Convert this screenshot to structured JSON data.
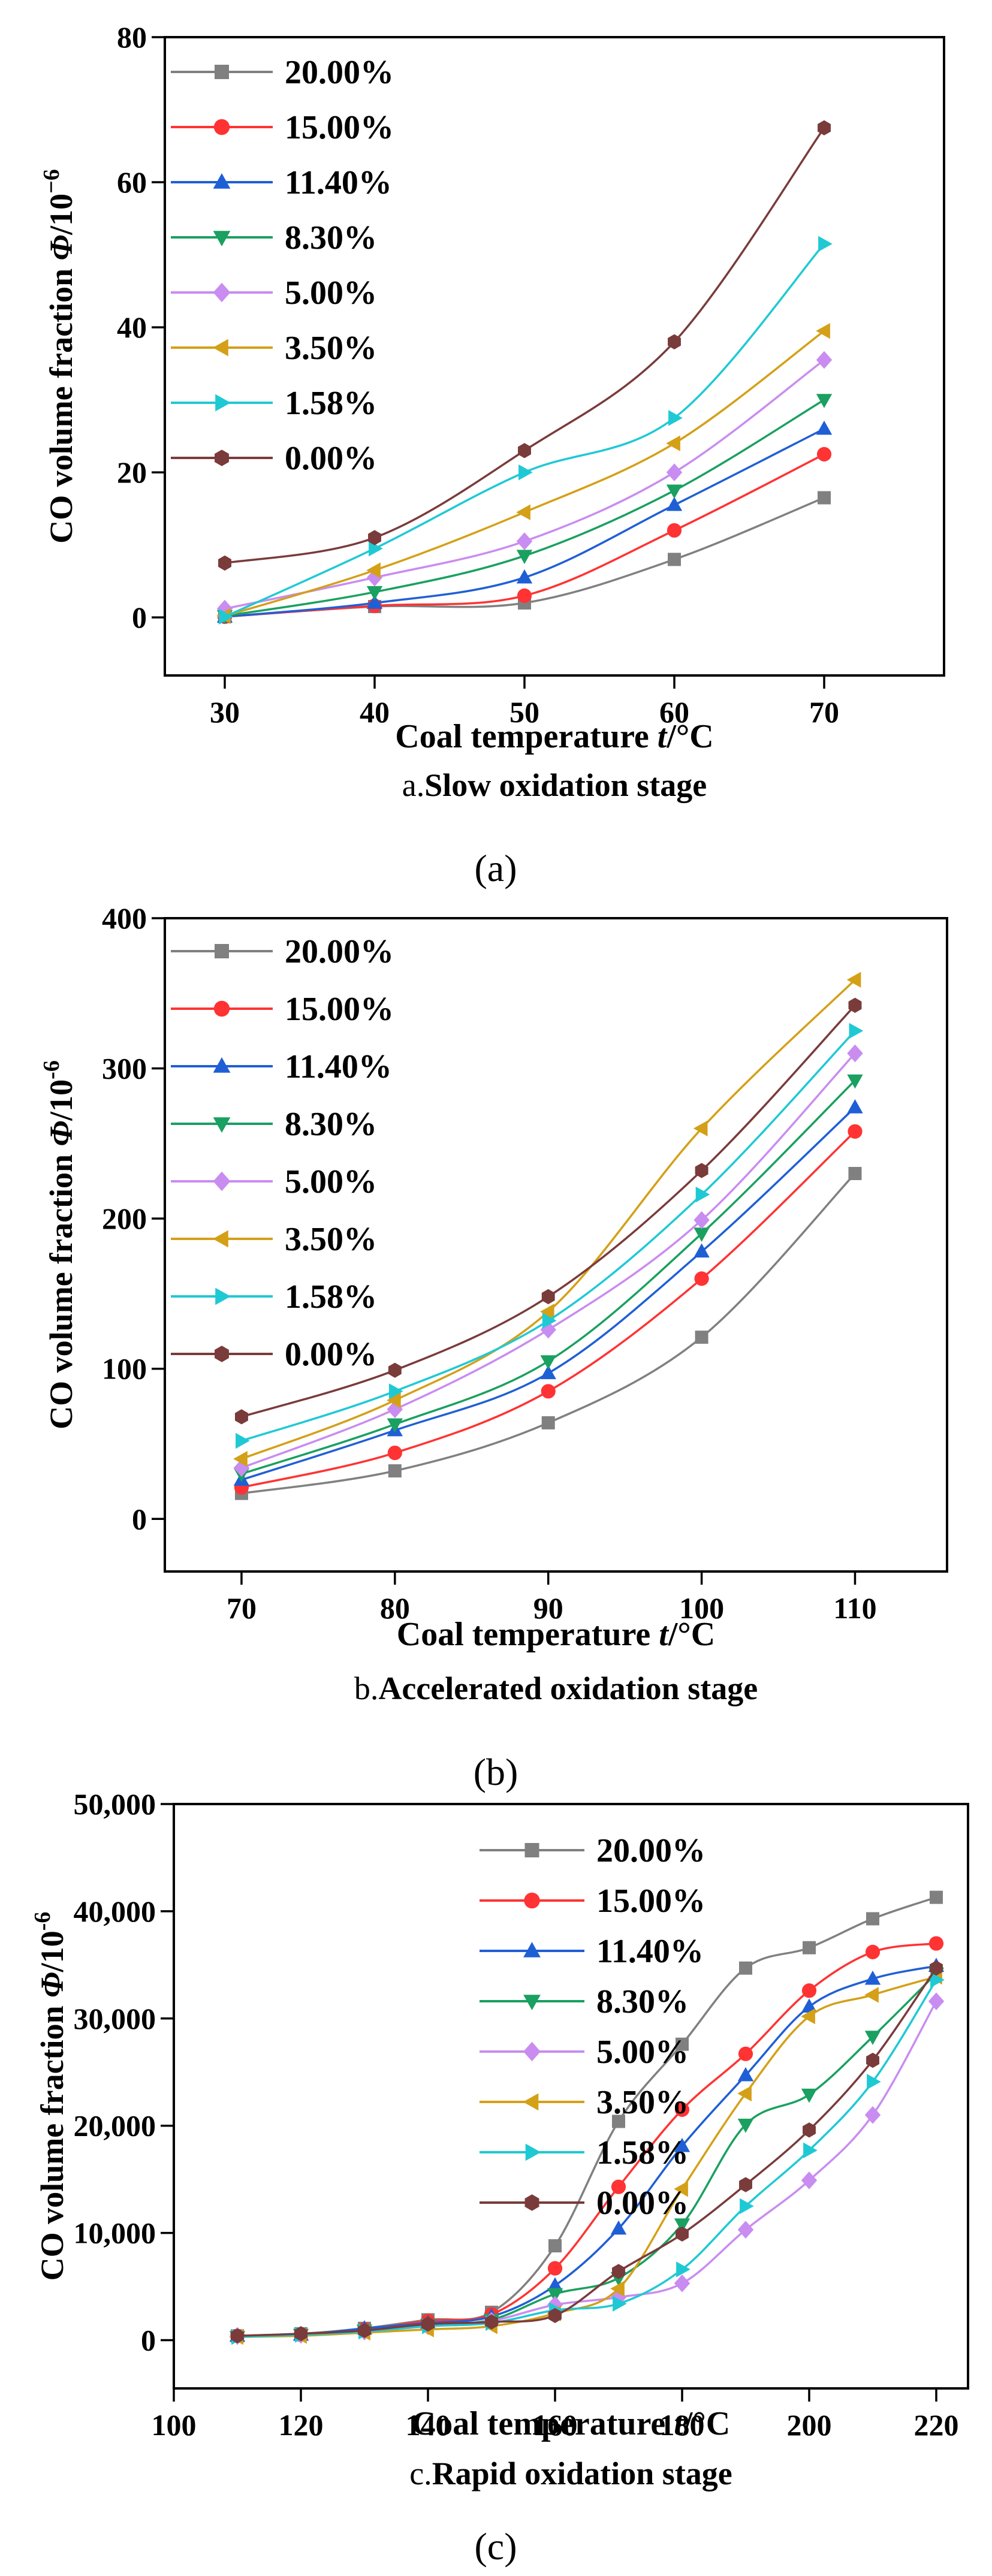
{
  "figure": {
    "series_names": [
      "20.00%",
      "15.00%",
      "11.40%",
      "8.30%",
      "5.00%",
      "3.50%",
      "1.58%",
      "0.00%"
    ],
    "series_colors": [
      "#808080",
      "#ff3333",
      "#1f5fd6",
      "#1aa060",
      "#c98cf0",
      "#d4a017",
      "#1fc9d4",
      "#7a3b3b"
    ],
    "series_markers": [
      "square",
      "circle",
      "triangle-up",
      "triangle-down",
      "diamond",
      "triangle-left",
      "triangle-right",
      "hexagon"
    ]
  },
  "chart_data": [
    {
      "type": "line",
      "panel_label": "(a)",
      "caption_prefix": "a.",
      "caption_title": "Slow oxidation stage",
      "xlabel": {
        "prefix": "Coal temperature ",
        "italic": "t",
        "suffix": "/°C"
      },
      "ylabel": {
        "prefix": "CO volume fraction ",
        "italic": "Φ",
        "suffix": "/10",
        "sup": "−6"
      },
      "xlim": [
        26,
        78
      ],
      "ylim": [
        -8,
        80
      ],
      "xticks": [
        30,
        40,
        50,
        60,
        70
      ],
      "xtick_labels": [
        "30",
        "40",
        "50",
        "60",
        "70"
      ],
      "yticks": [
        0,
        20,
        40,
        60,
        80
      ],
      "ytick_labels": [
        "0",
        "20",
        "40",
        "60",
        "80"
      ],
      "x": [
        30,
        40,
        50,
        60,
        70
      ],
      "series": [
        {
          "name": "20.00%",
          "values": [
            0.1,
            1.5,
            2.0,
            8.0,
            16.5
          ]
        },
        {
          "name": "15.00%",
          "values": [
            0.1,
            1.6,
            3.0,
            12.0,
            22.5
          ]
        },
        {
          "name": "11.40%",
          "values": [
            0.1,
            2.0,
            5.5,
            15.5,
            26.0
          ]
        },
        {
          "name": "8.30%",
          "values": [
            0.2,
            3.5,
            8.5,
            17.5,
            30.0
          ]
        },
        {
          "name": "5.00%",
          "values": [
            1.2,
            5.5,
            10.5,
            20.0,
            35.5
          ]
        },
        {
          "name": "3.50%",
          "values": [
            0.2,
            6.5,
            14.5,
            24.0,
            39.5
          ]
        },
        {
          "name": "1.58%",
          "values": [
            0.1,
            9.5,
            20.0,
            27.5,
            51.5
          ]
        },
        {
          "name": "0.00%",
          "values": [
            7.5,
            11.0,
            23.0,
            38.0,
            67.5
          ]
        }
      ]
    },
    {
      "type": "line",
      "panel_label": "(b)",
      "caption_prefix": "b.",
      "caption_title": "Accelerated oxidation stage",
      "xlabel": {
        "prefix": "Coal temperature ",
        "italic": "t",
        "suffix": "/°C"
      },
      "ylabel": {
        "prefix": "CO volume fraction ",
        "italic": "Φ",
        "suffix": "/10",
        "sup": "-6"
      },
      "xlim": [
        65,
        116
      ],
      "ylim": [
        -35,
        400
      ],
      "xticks": [
        70,
        80,
        90,
        100,
        110
      ],
      "xtick_labels": [
        "70",
        "80",
        "90",
        "100",
        "110"
      ],
      "yticks": [
        0,
        100,
        200,
        300,
        400
      ],
      "ytick_labels": [
        "0",
        "100",
        "200",
        "300",
        "400"
      ],
      "x": [
        70,
        80,
        90,
        100,
        110
      ],
      "series": [
        {
          "name": "20.00%",
          "values": [
            17,
            32,
            64,
            121,
            230
          ]
        },
        {
          "name": "15.00%",
          "values": [
            21,
            44,
            85,
            160,
            258
          ]
        },
        {
          "name": "11.40%",
          "values": [
            26,
            59,
            97,
            178,
            274
          ]
        },
        {
          "name": "8.30%",
          "values": [
            30,
            63,
            105,
            190,
            292
          ]
        },
        {
          "name": "5.00%",
          "values": [
            34,
            73,
            126,
            199,
            310
          ]
        },
        {
          "name": "3.50%",
          "values": [
            40,
            79,
            138,
            260,
            359
          ]
        },
        {
          "name": "1.58%",
          "values": [
            52,
            85,
            132,
            216,
            325
          ]
        },
        {
          "name": "0.00%",
          "values": [
            68,
            99,
            148,
            232,
            342
          ]
        }
      ]
    },
    {
      "type": "line",
      "panel_label": "(c)",
      "caption_prefix": "c.",
      "caption_title": "Rapid oxidation stage",
      "xlabel": {
        "prefix": "Coal temperature ",
        "italic": "t",
        "suffix": "/°C"
      },
      "ylabel": {
        "prefix": "CO volume fraction ",
        "italic": "Φ",
        "suffix": "/10",
        "sup": "-6"
      },
      "xlim": [
        100,
        225
      ],
      "ylim": [
        -4500,
        50000
      ],
      "xticks": [
        100,
        120,
        140,
        160,
        180,
        200,
        220
      ],
      "xtick_labels": [
        "100",
        "120",
        "140",
        "160",
        "180",
        "200",
        "220"
      ],
      "yticks": [
        0,
        10000,
        20000,
        30000,
        40000,
        50000
      ],
      "ytick_labels": [
        "0",
        "10,000",
        "20,000",
        "30,000",
        "40,000",
        "50,000"
      ],
      "x": [
        110,
        120,
        130,
        140,
        150,
        160,
        170,
        180,
        190,
        200,
        210,
        220
      ],
      "series": [
        {
          "name": "20.00%",
          "values": [
            400,
            600,
            1100,
            1900,
            2600,
            8800,
            20400,
            27600,
            34700,
            36600,
            39300,
            41300
          ]
        },
        {
          "name": "15.00%",
          "values": [
            400,
            500,
            1000,
            1800,
            2400,
            6700,
            14300,
            21500,
            26700,
            32600,
            36200,
            37000
          ]
        },
        {
          "name": "11.40%",
          "values": [
            400,
            500,
            1100,
            1600,
            2200,
            5100,
            10400,
            18100,
            24700,
            31100,
            33700,
            34900
          ]
        },
        {
          "name": "8.30%",
          "values": [
            300,
            500,
            900,
            1400,
            1900,
            4300,
            5800,
            10800,
            20100,
            22900,
            28300,
            34200
          ]
        },
        {
          "name": "5.00%",
          "values": [
            400,
            500,
            800,
            1300,
            1800,
            3300,
            4000,
            5300,
            10300,
            14900,
            21000,
            31600
          ]
        },
        {
          "name": "3.50%",
          "values": [
            300,
            400,
            700,
            1000,
            1300,
            2500,
            4800,
            14100,
            23000,
            30200,
            32200,
            33900
          ]
        },
        {
          "name": "1.58%",
          "values": [
            300,
            500,
            800,
            1300,
            1600,
            2800,
            3400,
            6600,
            12500,
            17700,
            24100,
            33600
          ]
        },
        {
          "name": "0.00%",
          "values": [
            400,
            600,
            900,
            1500,
            1700,
            2300,
            6400,
            9900,
            14500,
            19600,
            26100,
            34700
          ]
        }
      ]
    }
  ]
}
